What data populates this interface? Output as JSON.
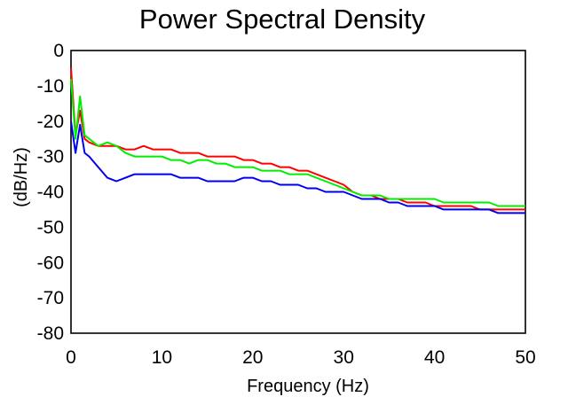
{
  "chart_data": {
    "type": "line",
    "title": "Power Spectral Density",
    "xlabel": "Frequency (Hz)",
    "ylabel": "(dB/Hz)",
    "xlim": [
      0,
      50
    ],
    "ylim": [
      -80,
      0
    ],
    "x_ticks": [
      "0",
      "10",
      "20",
      "30",
      "40",
      "50"
    ],
    "y_ticks": [
      "0",
      "-10",
      "-20",
      "-30",
      "-40",
      "-50",
      "-60",
      "-70",
      "-80"
    ],
    "grid": false,
    "legend": "none",
    "series": [
      {
        "color": "#ff0000",
        "x": [
          0,
          0.5,
          1,
          1.5,
          2,
          3,
          4,
          5,
          6,
          7,
          8,
          9,
          10,
          11,
          12,
          13,
          14,
          15,
          16,
          17,
          18,
          19,
          20,
          21,
          22,
          23,
          24,
          25,
          26,
          27,
          28,
          29,
          30,
          31,
          32,
          33,
          34,
          35,
          36,
          37,
          38,
          39,
          40,
          41,
          42,
          43,
          44,
          45,
          46,
          47,
          48,
          49,
          50
        ],
        "values": [
          -5,
          -24,
          -17,
          -25,
          -26,
          -27,
          -27,
          -27,
          -28,
          -28,
          -27,
          -28,
          -28,
          -28,
          -29,
          -29,
          -29,
          -30,
          -30,
          -30,
          -30,
          -31,
          -31,
          -32,
          -32,
          -33,
          -33,
          -34,
          -34,
          -35,
          -36,
          -37,
          -38,
          -40,
          -41,
          -41,
          -42,
          -42,
          -42,
          -43,
          -43,
          -43,
          -44,
          -44,
          -44,
          -44,
          -44,
          -45,
          -45,
          -45,
          -45,
          -45,
          -45
        ]
      },
      {
        "color": "#00ee00",
        "x": [
          0,
          0.5,
          1,
          1.5,
          2,
          3,
          4,
          5,
          6,
          7,
          8,
          9,
          10,
          11,
          12,
          13,
          14,
          15,
          16,
          17,
          18,
          19,
          20,
          21,
          22,
          23,
          24,
          25,
          26,
          27,
          28,
          29,
          30,
          31,
          32,
          33,
          34,
          35,
          36,
          37,
          38,
          39,
          40,
          41,
          42,
          43,
          44,
          45,
          46,
          47,
          48,
          49,
          50
        ],
        "values": [
          -8,
          -25,
          -13,
          -24,
          -25,
          -27,
          -26,
          -27,
          -29,
          -30,
          -30,
          -30,
          -30,
          -31,
          -31,
          -32,
          -31,
          -31,
          -32,
          -32,
          -33,
          -33,
          -33,
          -34,
          -34,
          -34,
          -35,
          -35,
          -35,
          -36,
          -37,
          -38,
          -39,
          -40,
          -41,
          -41,
          -41,
          -42,
          -42,
          -42,
          -42,
          -42,
          -42,
          -43,
          -43,
          -43,
          -43,
          -43,
          -43,
          -44,
          -44,
          -44,
          -44
        ]
      },
      {
        "color": "#0000ee",
        "x": [
          0,
          0.5,
          1,
          1.5,
          2,
          3,
          4,
          5,
          6,
          7,
          8,
          9,
          10,
          11,
          12,
          13,
          14,
          15,
          16,
          17,
          18,
          19,
          20,
          21,
          22,
          23,
          24,
          25,
          26,
          27,
          28,
          29,
          30,
          31,
          32,
          33,
          34,
          35,
          36,
          37,
          38,
          39,
          40,
          41,
          42,
          43,
          44,
          45,
          46,
          47,
          48,
          49,
          50
        ],
        "values": [
          -20,
          -29,
          -21,
          -29,
          -30,
          -33,
          -36,
          -37,
          -36,
          -35,
          -35,
          -35,
          -35,
          -35,
          -36,
          -36,
          -36,
          -37,
          -37,
          -37,
          -37,
          -36,
          -36,
          -37,
          -37,
          -38,
          -38,
          -38,
          -39,
          -39,
          -40,
          -40,
          -40,
          -41,
          -42,
          -42,
          -42,
          -43,
          -43,
          -44,
          -44,
          -44,
          -44,
          -45,
          -45,
          -45,
          -45,
          -45,
          -45,
          -46,
          -46,
          -46,
          -46
        ]
      }
    ]
  }
}
